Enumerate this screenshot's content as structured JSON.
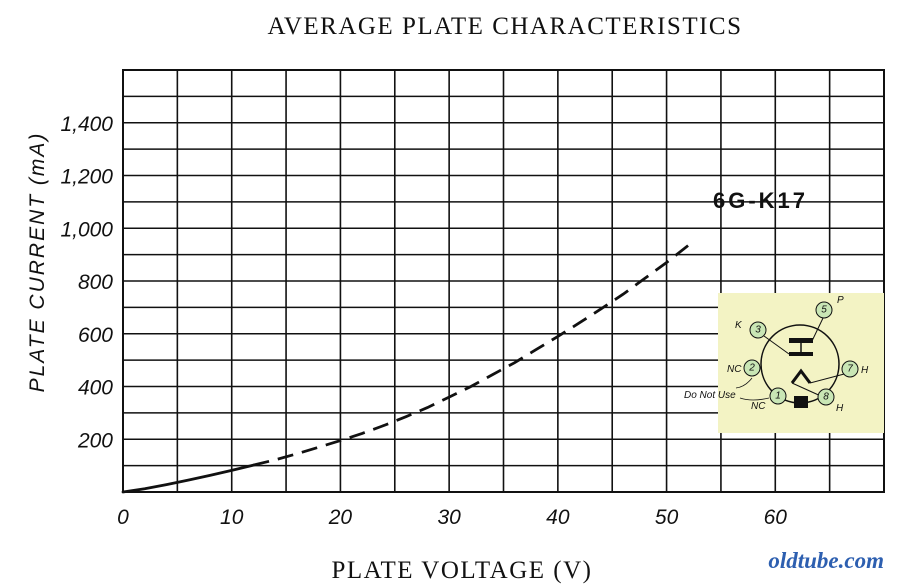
{
  "chart_data": {
    "type": "line",
    "title": "AVERAGE PLATE CHARACTERISTICS",
    "xlabel": "PLATE VOLTAGE (V)",
    "ylabel": "PLATE CURRENT (mA)",
    "xlim": [
      0,
      70
    ],
    "ylim": [
      0,
      1600
    ],
    "x_ticks": [
      0,
      10,
      20,
      30,
      40,
      50,
      60
    ],
    "x_tick_labels": [
      "0",
      "10",
      "20",
      "30",
      "40",
      "50",
      "60"
    ],
    "y_ticks": [
      200,
      400,
      600,
      800,
      1000,
      1200,
      1400
    ],
    "y_tick_labels": [
      "200",
      "400",
      "600",
      "800",
      "1,000",
      "1,200",
      "1,400"
    ],
    "grid": true,
    "series": [
      {
        "name": "6G-K17",
        "solid_until_x": 12,
        "x": [
          0,
          2,
          4,
          6,
          8,
          10,
          12,
          14,
          16,
          18,
          20,
          22,
          24,
          26,
          28,
          30,
          32,
          34,
          36,
          38,
          40,
          42,
          44,
          46,
          48,
          50,
          52
        ],
        "y": [
          0,
          12,
          28,
          45,
          63,
          82,
          102,
          122,
          145,
          170,
          195,
          222,
          252,
          285,
          320,
          360,
          400,
          445,
          490,
          540,
          590,
          642,
          695,
          750,
          810,
          870,
          935
        ]
      }
    ]
  },
  "diagram": {
    "pins": [
      {
        "num": "1",
        "label": "NC"
      },
      {
        "num": "2",
        "label": "NC"
      },
      {
        "num": "3",
        "label": "K"
      },
      {
        "num": "5",
        "label": "P"
      },
      {
        "num": "7",
        "label": "H"
      },
      {
        "num": "8",
        "label": "H"
      }
    ],
    "note": "Do Not Use"
  },
  "watermark": "oldtube.com",
  "colors": {
    "ink": "#111111",
    "grid": "#111111",
    "diagram_bg": "#f3f3c4",
    "pin_fill": "#c9e6b5",
    "watermark": "#2d5fb0"
  }
}
